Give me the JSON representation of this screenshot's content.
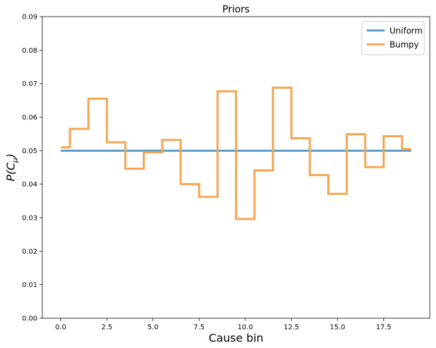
{
  "chart_data": {
    "type": "line",
    "title": "Priors",
    "xlabel": "Cause bin",
    "ylabel_main": "P(C",
    "ylabel_sub": "μ",
    "ylabel_end": ")",
    "xlim": [
      -1,
      20
    ],
    "ylim": [
      0,
      0.09
    ],
    "xticks": [
      0,
      2.5,
      5,
      7.5,
      10,
      12.5,
      15,
      17.5
    ],
    "xtick_labels": [
      "0.0",
      "2.5",
      "5.0",
      "7.5",
      "10.0",
      "12.5",
      "15.0",
      "17.5"
    ],
    "yticks": [
      0,
      0.01,
      0.02,
      0.03,
      0.04,
      0.05,
      0.06,
      0.07,
      0.08,
      0.09
    ],
    "ytick_labels": [
      "0.00",
      "0.01",
      "0.02",
      "0.03",
      "0.04",
      "0.05",
      "0.06",
      "0.07",
      "0.08",
      "0.09"
    ],
    "grid": false,
    "legend_position": "top-right",
    "step": "mid",
    "x": [
      0,
      1,
      2,
      3,
      4,
      5,
      6,
      7,
      8,
      9,
      10,
      11,
      12,
      13,
      14,
      15,
      16,
      17,
      18,
      19
    ],
    "series": [
      {
        "name": "Uniform",
        "color": "#5b9bc7",
        "values": [
          0.05,
          0.05,
          0.05,
          0.05,
          0.05,
          0.05,
          0.05,
          0.05,
          0.05,
          0.05,
          0.05,
          0.05,
          0.05,
          0.05,
          0.05,
          0.05,
          0.05,
          0.05,
          0.05,
          0.05
        ]
      },
      {
        "name": "Bumpy",
        "color": "#f7a44f",
        "values": [
          0.051,
          0.0565,
          0.0655,
          0.0525,
          0.0446,
          0.0495,
          0.0532,
          0.04,
          0.0362,
          0.0677,
          0.0296,
          0.0441,
          0.0688,
          0.0537,
          0.0427,
          0.0371,
          0.0549,
          0.0451,
          0.0543,
          0.0505
        ]
      }
    ]
  }
}
